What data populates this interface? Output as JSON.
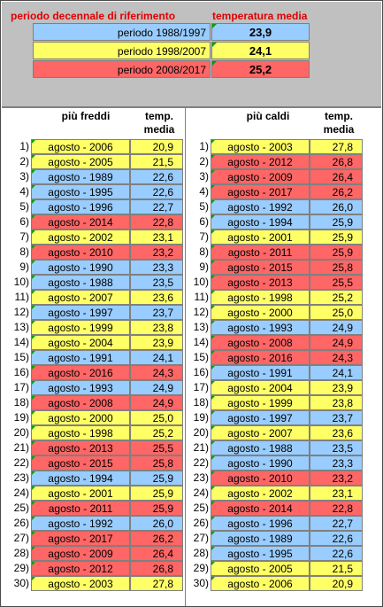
{
  "reference": {
    "header_period": "periodo decennale di riferimento",
    "header_temp": "temperatura media",
    "rows": [
      {
        "label": "periodo 1988/1997",
        "value": "23,9",
        "color": "#99ccff"
      },
      {
        "label": "periodo 1998/2007",
        "value": "24,1",
        "color": "#ffff66"
      },
      {
        "label": "periodo 2008/2017",
        "value": "25,2",
        "color": "#ff6666"
      }
    ]
  },
  "colors": {
    "blue": "#99ccff",
    "yellow": "#ffff66",
    "red": "#ff6666",
    "green_marker": "#00a000",
    "header_red": "#e00000"
  },
  "coldest": {
    "header_label": "più freddi",
    "header_temp": "temp. media",
    "rows": [
      {
        "index": "1)",
        "label": "agosto - 2006",
        "value": "20,9",
        "color": "yellow"
      },
      {
        "index": "2)",
        "label": "agosto - 2005",
        "value": "21,5",
        "color": "yellow"
      },
      {
        "index": "3)",
        "label": "agosto - 1989",
        "value": "22,6",
        "color": "blue"
      },
      {
        "index": "4)",
        "label": "agosto - 1995",
        "value": "22,6",
        "color": "blue"
      },
      {
        "index": "5)",
        "label": "agosto - 1996",
        "value": "22,7",
        "color": "blue"
      },
      {
        "index": "6)",
        "label": "agosto - 2014",
        "value": "22,8",
        "color": "red"
      },
      {
        "index": "7)",
        "label": "agosto - 2002",
        "value": "23,1",
        "color": "yellow"
      },
      {
        "index": "8)",
        "label": "agosto - 2010",
        "value": "23,2",
        "color": "red"
      },
      {
        "index": "9)",
        "label": "agosto - 1990",
        "value": "23,3",
        "color": "blue"
      },
      {
        "index": "10)",
        "label": "agosto - 1988",
        "value": "23,5",
        "color": "blue"
      },
      {
        "index": "11)",
        "label": "agosto - 2007",
        "value": "23,6",
        "color": "yellow"
      },
      {
        "index": "12)",
        "label": "agosto - 1997",
        "value": "23,7",
        "color": "blue"
      },
      {
        "index": "13)",
        "label": "agosto - 1999",
        "value": "23,8",
        "color": "yellow"
      },
      {
        "index": "14)",
        "label": "agosto - 2004",
        "value": "23,9",
        "color": "yellow"
      },
      {
        "index": "15)",
        "label": "agosto - 1991",
        "value": "24,1",
        "color": "blue"
      },
      {
        "index": "16)",
        "label": "agosto - 2016",
        "value": "24,3",
        "color": "red"
      },
      {
        "index": "17)",
        "label": "agosto - 1993",
        "value": "24,9",
        "color": "blue"
      },
      {
        "index": "18)",
        "label": "agosto - 2008",
        "value": "24,9",
        "color": "red"
      },
      {
        "index": "19)",
        "label": "agosto - 2000",
        "value": "25,0",
        "color": "yellow"
      },
      {
        "index": "20)",
        "label": "agosto - 1998",
        "value": "25,2",
        "color": "yellow"
      },
      {
        "index": "21)",
        "label": "agosto - 2013",
        "value": "25,5",
        "color": "red"
      },
      {
        "index": "22)",
        "label": "agosto - 2015",
        "value": "25,8",
        "color": "red"
      },
      {
        "index": "23)",
        "label": "agosto - 1994",
        "value": "25,9",
        "color": "blue"
      },
      {
        "index": "24)",
        "label": "agosto - 2001",
        "value": "25,9",
        "color": "yellow"
      },
      {
        "index": "25)",
        "label": "agosto - 2011",
        "value": "25,9",
        "color": "red"
      },
      {
        "index": "26)",
        "label": "agosto - 1992",
        "value": "26,0",
        "color": "blue"
      },
      {
        "index": "27)",
        "label": "agosto - 2017",
        "value": "26,2",
        "color": "red"
      },
      {
        "index": "28)",
        "label": "agosto - 2009",
        "value": "26,4",
        "color": "red"
      },
      {
        "index": "29)",
        "label": "agosto - 2012",
        "value": "26,8",
        "color": "red"
      },
      {
        "index": "30)",
        "label": "agosto - 2003",
        "value": "27,8",
        "color": "yellow"
      }
    ]
  },
  "hottest": {
    "header_label": "più caldi",
    "header_temp": "temp. media",
    "rows": [
      {
        "index": "1)",
        "label": "agosto - 2003",
        "value": "27,8",
        "color": "yellow"
      },
      {
        "index": "2)",
        "label": "agosto - 2012",
        "value": "26,8",
        "color": "red"
      },
      {
        "index": "3)",
        "label": "agosto - 2009",
        "value": "26,4",
        "color": "red"
      },
      {
        "index": "4)",
        "label": "agosto - 2017",
        "value": "26,2",
        "color": "red"
      },
      {
        "index": "5)",
        "label": "agosto - 1992",
        "value": "26,0",
        "color": "blue"
      },
      {
        "index": "6)",
        "label": "agosto - 1994",
        "value": "25,9",
        "color": "blue"
      },
      {
        "index": "7)",
        "label": "agosto - 2001",
        "value": "25,9",
        "color": "yellow"
      },
      {
        "index": "8)",
        "label": "agosto - 2011",
        "value": "25,9",
        "color": "red"
      },
      {
        "index": "9)",
        "label": "agosto - 2015",
        "value": "25,8",
        "color": "red"
      },
      {
        "index": "10)",
        "label": "agosto - 2013",
        "value": "25,5",
        "color": "red"
      },
      {
        "index": "11)",
        "label": "agosto - 1998",
        "value": "25,2",
        "color": "yellow"
      },
      {
        "index": "12)",
        "label": "agosto - 2000",
        "value": "25,0",
        "color": "yellow"
      },
      {
        "index": "13)",
        "label": "agosto - 1993",
        "value": "24,9",
        "color": "blue"
      },
      {
        "index": "14)",
        "label": "agosto - 2008",
        "value": "24,9",
        "color": "red"
      },
      {
        "index": "15)",
        "label": "agosto - 2016",
        "value": "24,3",
        "color": "red"
      },
      {
        "index": "16)",
        "label": "agosto - 1991",
        "value": "24,1",
        "color": "blue"
      },
      {
        "index": "17)",
        "label": "agosto - 2004",
        "value": "23,9",
        "color": "yellow"
      },
      {
        "index": "18)",
        "label": "agosto - 1999",
        "value": "23,8",
        "color": "yellow"
      },
      {
        "index": "19)",
        "label": "agosto - 1997",
        "value": "23,7",
        "color": "blue"
      },
      {
        "index": "20)",
        "label": "agosto - 2007",
        "value": "23,6",
        "color": "yellow"
      },
      {
        "index": "21)",
        "label": "agosto - 1988",
        "value": "23,5",
        "color": "blue"
      },
      {
        "index": "22)",
        "label": "agosto - 1990",
        "value": "23,3",
        "color": "blue"
      },
      {
        "index": "23)",
        "label": "agosto - 2010",
        "value": "23,2",
        "color": "red"
      },
      {
        "index": "24)",
        "label": "agosto - 2002",
        "value": "23,1",
        "color": "yellow"
      },
      {
        "index": "25)",
        "label": "agosto - 2014",
        "value": "22,8",
        "color": "red"
      },
      {
        "index": "26)",
        "label": "agosto - 1996",
        "value": "22,7",
        "color": "blue"
      },
      {
        "index": "27)",
        "label": "agosto - 1989",
        "value": "22,6",
        "color": "blue"
      },
      {
        "index": "28)",
        "label": "agosto - 1995",
        "value": "22,6",
        "color": "blue"
      },
      {
        "index": "29)",
        "label": "agosto - 2005",
        "value": "21,5",
        "color": "yellow"
      },
      {
        "index": "30)",
        "label": "agosto - 2006",
        "value": "20,9",
        "color": "yellow"
      }
    ]
  }
}
